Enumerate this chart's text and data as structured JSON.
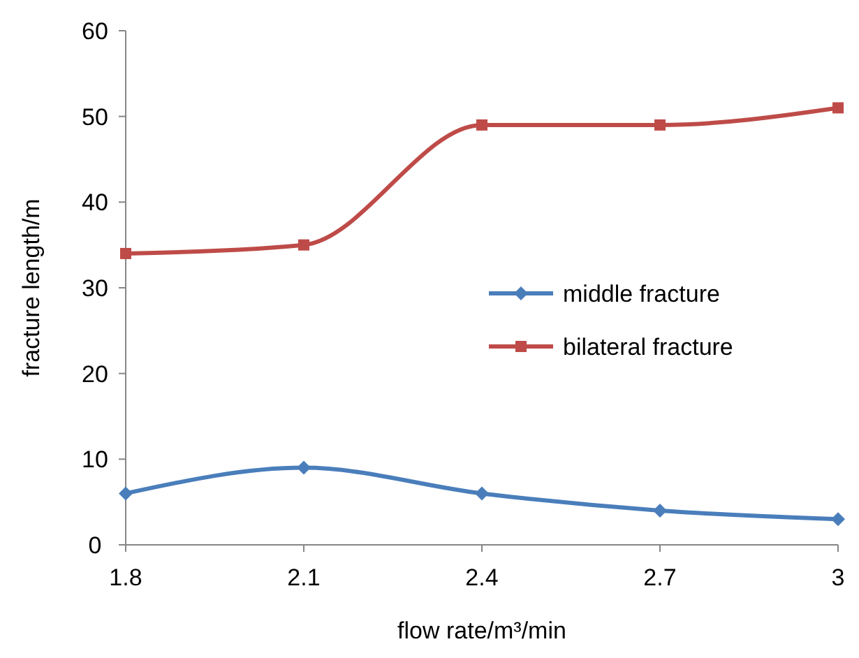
{
  "chart_data": {
    "type": "line",
    "xlabel": "flow rate/m³/min",
    "ylabel": "fracture length/m",
    "x": [
      1.8,
      2.1,
      2.4,
      2.7,
      3
    ],
    "xlim": [
      1.8,
      3
    ],
    "xticks": [
      {
        "value": 1.8,
        "label": "1.8"
      },
      {
        "value": 2.1,
        "label": "2.1"
      },
      {
        "value": 2.4,
        "label": "2.4"
      },
      {
        "value": 2.7,
        "label": "2.7"
      },
      3
    ],
    "ylim": [
      0,
      60
    ],
    "yticks": [
      0,
      10,
      20,
      30,
      40,
      50,
      60
    ],
    "grid": false,
    "legend": "right",
    "line_style": "solid",
    "series": [
      {
        "name": "middle fracture",
        "color": "#4a7ebb",
        "marker": "diamond",
        "values": [
          6,
          9,
          6,
          4,
          3
        ]
      },
      {
        "name": "bilateral fracture",
        "color": "#be4b48",
        "marker": "square",
        "values": [
          34,
          35,
          49,
          49,
          51
        ]
      }
    ]
  }
}
